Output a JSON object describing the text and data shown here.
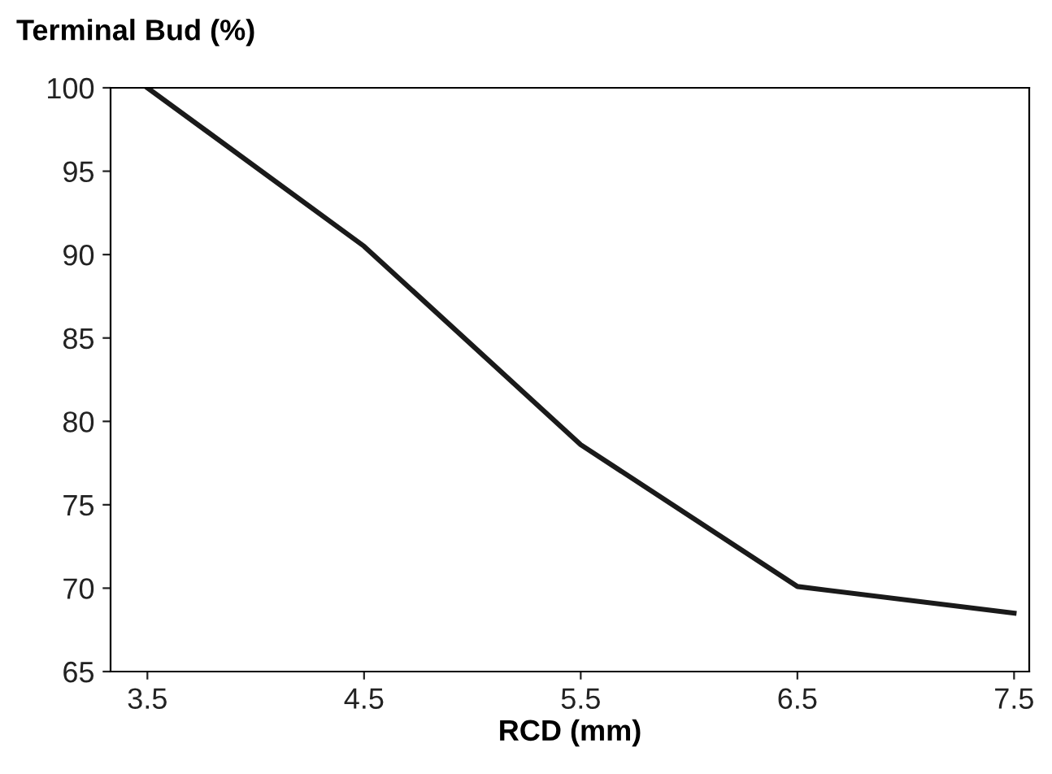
{
  "chart_data": {
    "type": "line",
    "xlabel": "RCD (mm)",
    "ylabel": "Terminal Bud (%)",
    "x": [
      3.5,
      4.5,
      5.5,
      6.5,
      7.5
    ],
    "series": [
      {
        "color": "#1a1a1a",
        "values": [
          100,
          90.5,
          78.6,
          70.1,
          68.5
        ]
      }
    ],
    "xlim": [
      3.33,
      7.57
    ],
    "xticks": [
      3.5,
      4.5,
      5.5,
      6.5,
      7.5
    ],
    "ylim": [
      65,
      100
    ],
    "yticks": [
      65,
      70,
      75,
      80,
      85,
      90,
      95,
      100
    ],
    "grid": false,
    "legend": false,
    "marker": "none",
    "line_style": "solid"
  }
}
